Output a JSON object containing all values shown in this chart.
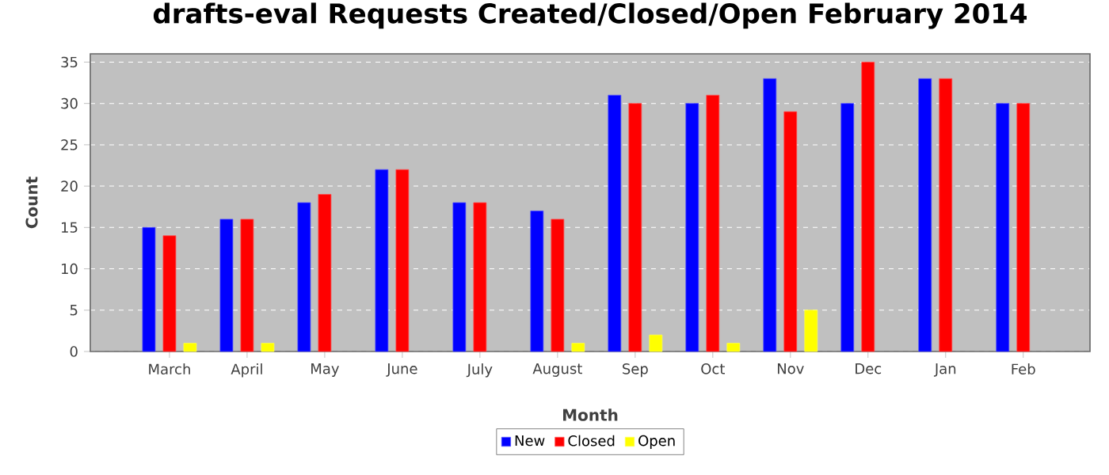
{
  "chart_data": {
    "type": "bar",
    "title": "drafts-eval Requests Created/Closed/Open February 2014",
    "xlabel": "Month",
    "ylabel": "Count",
    "categories": [
      "March",
      "April",
      "May",
      "June",
      "July",
      "August",
      "Sep",
      "Oct",
      "Nov",
      "Dec",
      "Jan",
      "Feb"
    ],
    "series": [
      {
        "name": "New",
        "color": "#0000ff",
        "values": [
          15,
          16,
          18,
          22,
          18,
          17,
          31,
          30,
          33,
          30,
          33,
          30
        ]
      },
      {
        "name": "Closed",
        "color": "#ff0000",
        "values": [
          14,
          16,
          19,
          22,
          18,
          16,
          30,
          31,
          29,
          35,
          33,
          30
        ]
      },
      {
        "name": "Open",
        "color": "#ffff00",
        "values": [
          1,
          1,
          null,
          null,
          null,
          1,
          2,
          1,
          5,
          null,
          null,
          null
        ]
      }
    ],
    "ylim": [
      0,
      36
    ],
    "yticks": [
      0,
      5,
      10,
      15,
      20,
      25,
      30,
      35
    ],
    "grid": "y",
    "legend": "bottom"
  }
}
